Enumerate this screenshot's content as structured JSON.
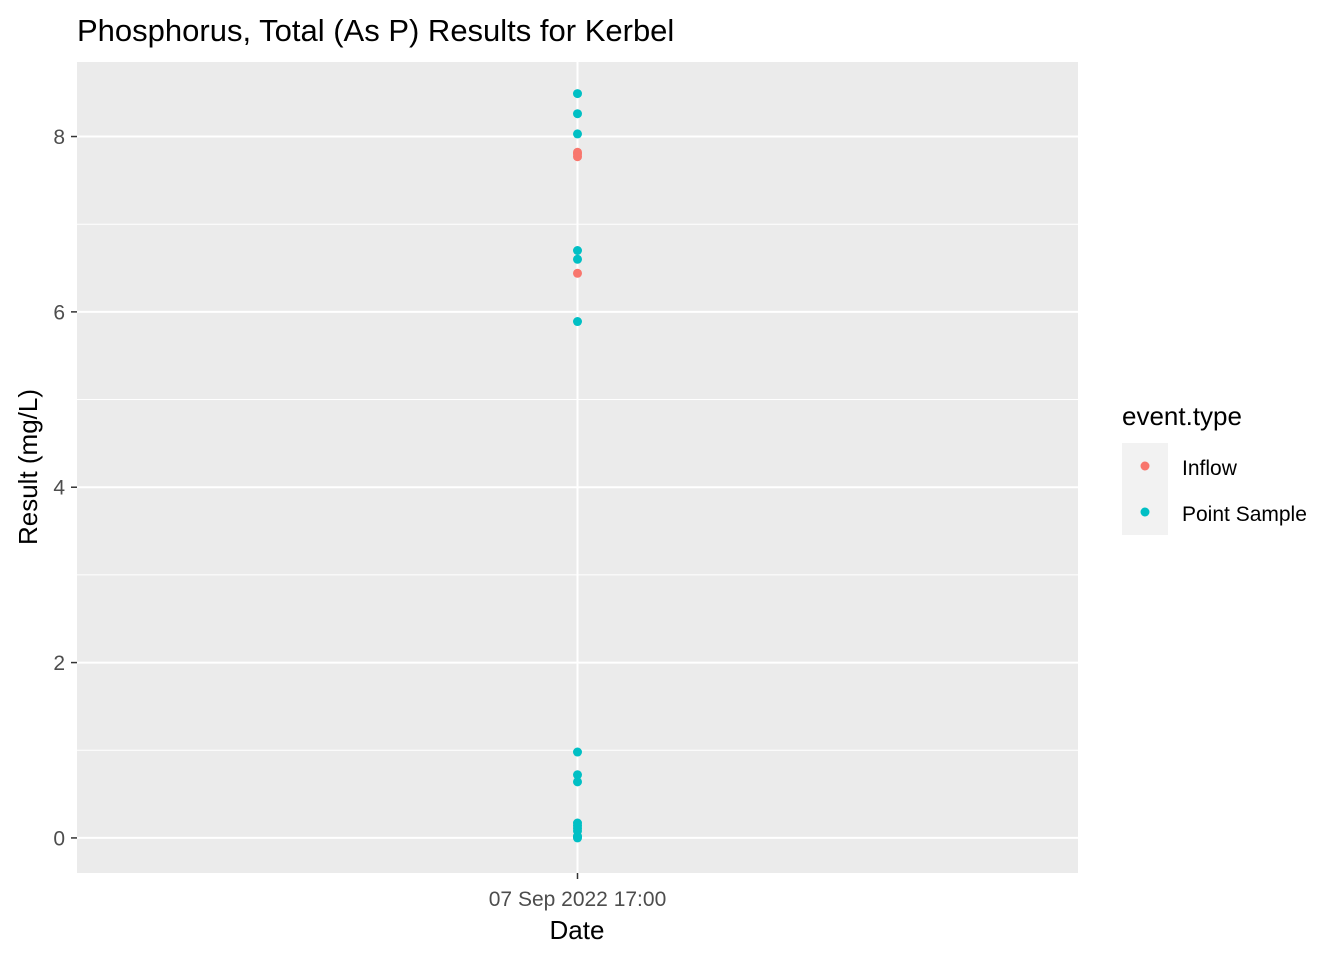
{
  "chart_data": {
    "type": "scatter",
    "title": "Phosphorus, Total (As P) Results for Kerbel",
    "xlabel": "Date",
    "ylabel": "Result (mg/L)",
    "x_tick_labels": [
      "07 Sep 2022 17:00"
    ],
    "y_tick_labels": [
      "0",
      "2",
      "4",
      "6",
      "8"
    ],
    "ylim": [
      -0.4,
      8.85
    ],
    "y_ticks": [
      0,
      2,
      4,
      6,
      8
    ],
    "y_minor": [
      1,
      3,
      5,
      7
    ],
    "grid": true,
    "legend": {
      "title": "event.type",
      "position": "right"
    },
    "series": [
      {
        "name": "Inflow",
        "color": "#F8766D",
        "x": [
          "07 Sep 2022 17:00",
          "07 Sep 2022 17:00",
          "07 Sep 2022 17:00",
          "07 Sep 2022 17:00"
        ],
        "values": [
          7.82,
          7.8,
          7.77,
          6.44
        ]
      },
      {
        "name": "Point Sample",
        "color": "#00BFC4",
        "x": [
          "07 Sep 2022 17:00",
          "07 Sep 2022 17:00",
          "07 Sep 2022 17:00",
          "07 Sep 2022 17:00",
          "07 Sep 2022 17:00",
          "07 Sep 2022 17:00",
          "07 Sep 2022 17:00",
          "07 Sep 2022 17:00",
          "07 Sep 2022 17:00",
          "07 Sep 2022 17:00",
          "07 Sep 2022 17:00",
          "07 Sep 2022 17:00",
          "07 Sep 2022 17:00",
          "07 Sep 2022 17:00",
          "07 Sep 2022 17:00",
          "07 Sep 2022 17:00"
        ],
        "values": [
          8.49,
          8.26,
          8.03,
          6.7,
          6.6,
          5.89,
          0.98,
          0.72,
          0.64,
          0.17,
          0.14,
          0.11,
          0.08,
          0.02,
          0.01,
          0.0
        ]
      }
    ]
  }
}
